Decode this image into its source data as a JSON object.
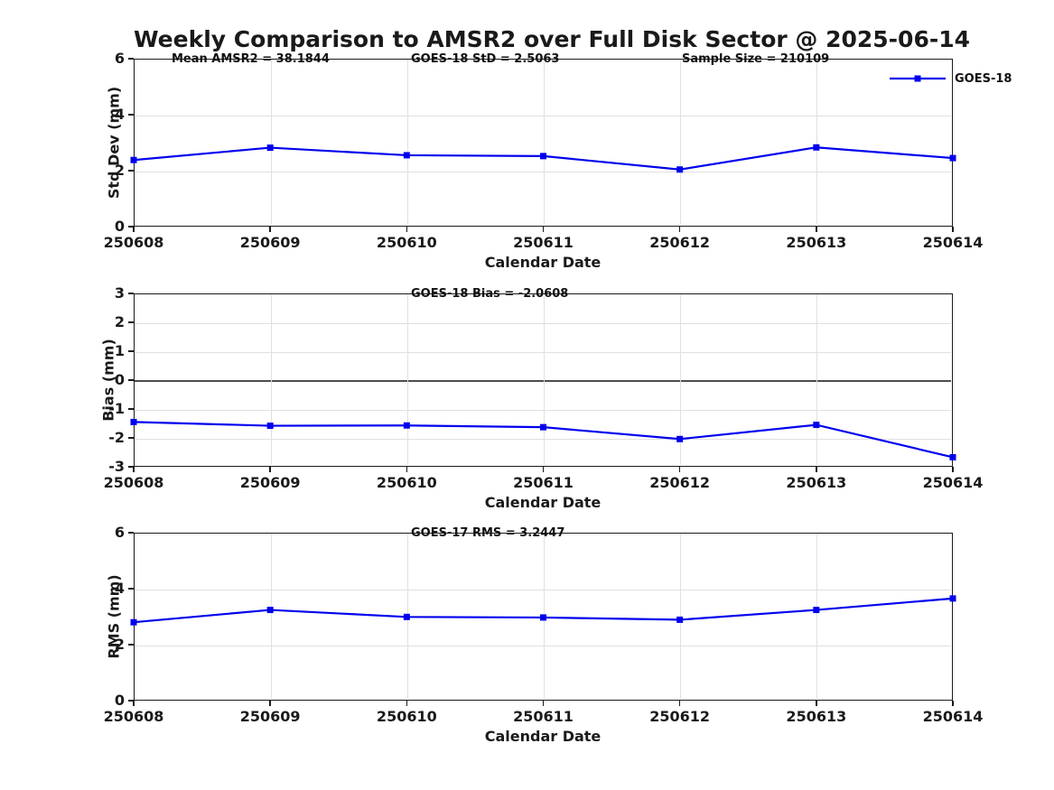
{
  "figure": {
    "title": "Weekly Comparison to AMSR2 over Full Disk Sector @ 2025-06-14"
  },
  "colors": {
    "series_line": "#0000EE",
    "grid": "#E0E0E0",
    "zero_line": "#4D4D4D",
    "axis": "#1A1A1A"
  },
  "chart_data": [
    {
      "type": "line",
      "title": "",
      "categories": [
        "250608",
        "250609",
        "250610",
        "250611",
        "250612",
        "250613",
        "250614"
      ],
      "series": [
        {
          "name": "GOES-18",
          "values": [
            2.38,
            2.82,
            2.55,
            2.52,
            2.04,
            2.83,
            2.45
          ]
        }
      ],
      "xlabel": "Calendar Date",
      "ylabel": "Std Dev (mm)",
      "ylim": [
        0,
        6
      ],
      "yticks": [
        0,
        2,
        4,
        6
      ],
      "grid": true,
      "zero_line": false,
      "legend_position": "northeast",
      "annotations": [
        "Mean AMSR2 = 38.1844",
        "GOES-18 StD = 2.5063",
        "Sample Size = 210109"
      ]
    },
    {
      "type": "line",
      "title": "",
      "categories": [
        "250608",
        "250609",
        "250610",
        "250611",
        "250612",
        "250613",
        "250614"
      ],
      "series": [
        {
          "name": "GOES-18",
          "values": [
            -1.45,
            -1.58,
            -1.57,
            -1.63,
            -2.04,
            -1.55,
            -2.67
          ]
        }
      ],
      "xlabel": "Calendar Date",
      "ylabel": "Bias (mm)",
      "ylim": [
        -3,
        3
      ],
      "yticks": [
        -3,
        -2,
        -1,
        0,
        1,
        2,
        3
      ],
      "grid": true,
      "zero_line": true,
      "annotations": [
        "GOES-18 Bias  = -2.0608"
      ]
    },
    {
      "type": "line",
      "title": "",
      "categories": [
        "250608",
        "250609",
        "250610",
        "250611",
        "250612",
        "250613",
        "250614"
      ],
      "series": [
        {
          "name": "GOES-18",
          "values": [
            2.8,
            3.24,
            2.99,
            2.97,
            2.89,
            3.24,
            3.65
          ]
        }
      ],
      "xlabel": "Calendar Date",
      "ylabel": "RMS (mm)",
      "ylim": [
        0,
        6
      ],
      "yticks": [
        0,
        2,
        4,
        6
      ],
      "grid": true,
      "zero_line": false,
      "annotations": [
        "GOES-17 RMS = 3.2447"
      ]
    }
  ]
}
